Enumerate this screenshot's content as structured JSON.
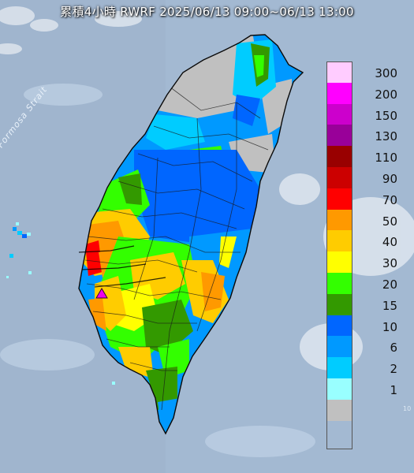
{
  "title": "累積4小時 RWRF 2025/06/13 09:00~06/13 13:00",
  "strait_label": "Formosa Strait",
  "corner_label": "10",
  "legend": [
    {
      "label": "300",
      "color": "#ffccff"
    },
    {
      "label": "200",
      "color": "#ff00ff"
    },
    {
      "label": "150",
      "color": "#cc00cc"
    },
    {
      "label": "130",
      "color": "#990099"
    },
    {
      "label": "110",
      "color": "#990000"
    },
    {
      "label": "90",
      "color": "#cc0000"
    },
    {
      "label": "70",
      "color": "#ff0000"
    },
    {
      "label": "50",
      "color": "#ff9900"
    },
    {
      "label": "40",
      "color": "#ffcc00"
    },
    {
      "label": "30",
      "color": "#ffff00"
    },
    {
      "label": "20",
      "color": "#33ff00"
    },
    {
      "label": "15",
      "color": "#339900"
    },
    {
      "label": "10",
      "color": "#0066ff"
    },
    {
      "label": "6",
      "color": "#0099ff"
    },
    {
      "label": "2",
      "color": "#00ccff"
    },
    {
      "label": "1",
      "color": "#99ffff"
    },
    {
      "label": "",
      "color": "#c0c0c0"
    }
  ],
  "marker_icon": "triangle-marker-icon",
  "marker_color": "#ee00ee"
}
